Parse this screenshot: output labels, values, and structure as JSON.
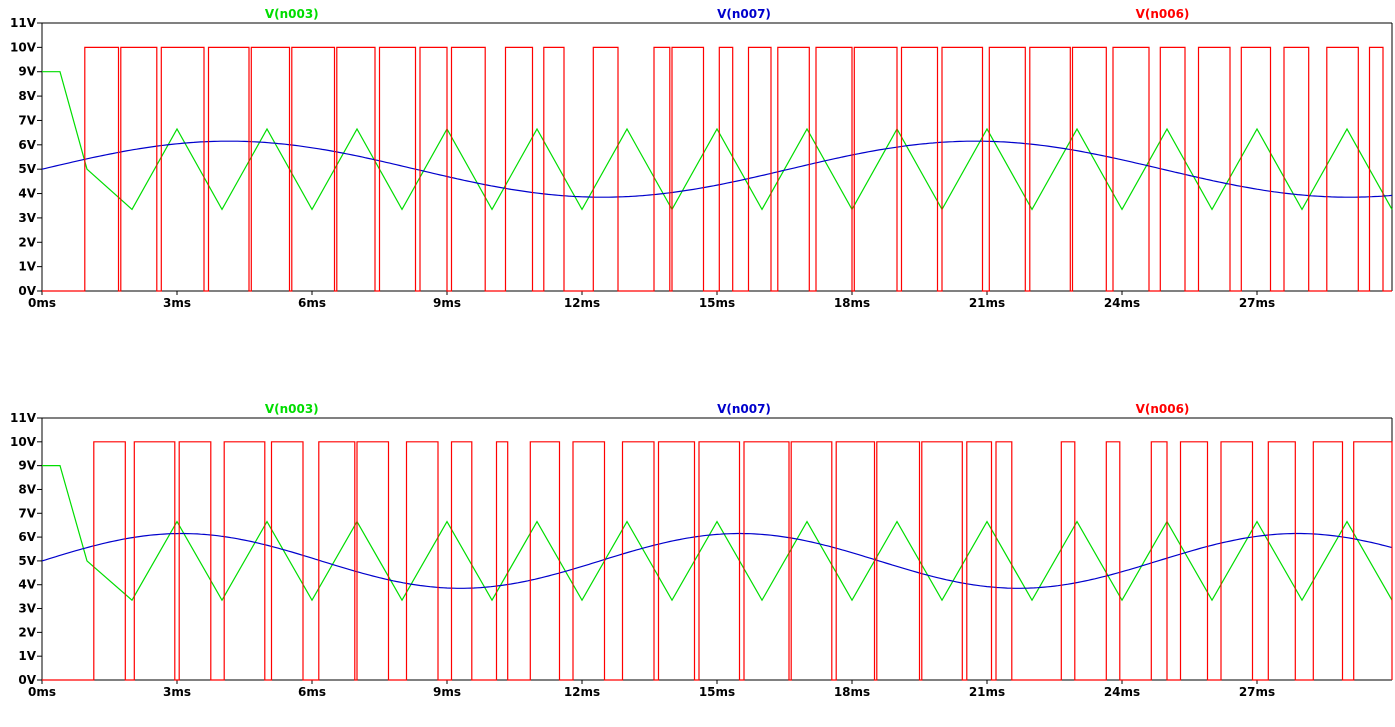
{
  "chart_data": [
    {
      "type": "line",
      "title": "",
      "xlabel": "",
      "ylabel": "",
      "xlim": [
        0,
        30
      ],
      "ylim": [
        0,
        11
      ],
      "x_unit": "ms",
      "y_unit": "V",
      "x_ticks": [
        0,
        3,
        6,
        9,
        12,
        15,
        18,
        21,
        24,
        27
      ],
      "x_tick_labels": [
        "0ms",
        "3ms",
        "6ms",
        "9ms",
        "12ms",
        "15ms",
        "18ms",
        "21ms",
        "24ms",
        "27ms"
      ],
      "y_ticks": [
        0,
        1,
        2,
        3,
        4,
        5,
        6,
        7,
        8,
        9,
        10,
        11
      ],
      "y_tick_labels": [
        "0V",
        "1V",
        "2V",
        "3V",
        "4V",
        "5V",
        "6V",
        "7V",
        "8V",
        "9V",
        "10V",
        "11V"
      ],
      "legend_position": "top",
      "series": [
        {
          "name": "V(n003)",
          "color": "#00dd00",
          "kind": "triangle",
          "initial_level": 9.0,
          "initial_hold_ms": 0.4,
          "first_min_ms": 2.0,
          "period_ms": 2.0,
          "min": 3.35,
          "max": 6.65
        },
        {
          "name": "V(n007)",
          "color": "#0000cc",
          "kind": "sine",
          "offset": 5.0,
          "amplitude": 1.15,
          "period_ms": 16.6,
          "phase_zero_ms": 0.0
        },
        {
          "name": "V(n006)",
          "color": "#ff0000",
          "kind": "pwm",
          "low": 0,
          "high": 10,
          "high_intervals_ms": [
            [
              0.95,
              1.7
            ],
            [
              1.75,
              2.55
            ],
            [
              2.65,
              3.6
            ],
            [
              3.7,
              4.6
            ],
            [
              4.65,
              5.5
            ],
            [
              5.55,
              6.5
            ],
            [
              6.55,
              7.4
            ],
            [
              7.5,
              8.3
            ],
            [
              8.4,
              9.0
            ],
            [
              9.1,
              9.85
            ],
            [
              10.3,
              10.9
            ],
            [
              11.15,
              11.6
            ],
            [
              12.25,
              12.8
            ],
            [
              13.6,
              13.95
            ],
            [
              14.0,
              14.7
            ],
            [
              15.05,
              15.35
            ],
            [
              15.7,
              16.2
            ],
            [
              16.35,
              17.05
            ],
            [
              17.2,
              18.0
            ],
            [
              18.05,
              19.0
            ],
            [
              19.1,
              19.9
            ],
            [
              20.0,
              20.9
            ],
            [
              21.05,
              21.85
            ],
            [
              21.95,
              22.85
            ],
            [
              22.9,
              23.65
            ],
            [
              23.8,
              24.6
            ],
            [
              24.85,
              25.4
            ],
            [
              25.7,
              26.4
            ],
            [
              26.65,
              27.3
            ],
            [
              27.6,
              28.15
            ],
            [
              28.55,
              29.25
            ],
            [
              29.5,
              29.8
            ]
          ]
        }
      ]
    },
    {
      "type": "line",
      "title": "",
      "xlabel": "",
      "ylabel": "",
      "xlim": [
        0,
        30
      ],
      "ylim": [
        0,
        11
      ],
      "x_unit": "ms",
      "y_unit": "V",
      "x_ticks": [
        0,
        3,
        6,
        9,
        12,
        15,
        18,
        21,
        24,
        27
      ],
      "x_tick_labels": [
        "0ms",
        "3ms",
        "6ms",
        "9ms",
        "12ms",
        "15ms",
        "18ms",
        "21ms",
        "24ms",
        "27ms"
      ],
      "y_ticks": [
        0,
        1,
        2,
        3,
        4,
        5,
        6,
        7,
        8,
        9,
        10,
        11
      ],
      "y_tick_labels": [
        "0V",
        "1V",
        "2V",
        "3V",
        "4V",
        "5V",
        "6V",
        "7V",
        "8V",
        "9V",
        "10V",
        "11V"
      ],
      "legend_position": "top",
      "series": [
        {
          "name": "V(n003)",
          "color": "#00dd00",
          "kind": "triangle",
          "initial_level": 9.0,
          "initial_hold_ms": 0.4,
          "first_min_ms": 2.0,
          "period_ms": 2.0,
          "min": 3.35,
          "max": 6.65
        },
        {
          "name": "V(n007)",
          "color": "#0000cc",
          "kind": "sine",
          "offset": 5.0,
          "amplitude": 1.15,
          "period_ms": 12.4,
          "phase_zero_ms": 0.0
        },
        {
          "name": "V(n006)",
          "color": "#ff0000",
          "kind": "pwm",
          "low": 0,
          "high": 10,
          "high_intervals_ms": [
            [
              1.15,
              1.85
            ],
            [
              2.05,
              2.95
            ],
            [
              3.05,
              3.75
            ],
            [
              4.05,
              4.95
            ],
            [
              5.1,
              5.8
            ],
            [
              6.15,
              6.95
            ],
            [
              7.0,
              7.7
            ],
            [
              8.1,
              8.8
            ],
            [
              9.1,
              9.55
            ],
            [
              10.1,
              10.35
            ],
            [
              10.85,
              11.5
            ],
            [
              11.8,
              12.5
            ],
            [
              12.9,
              13.6
            ],
            [
              13.7,
              14.5
            ],
            [
              14.6,
              15.5
            ],
            [
              15.6,
              16.6
            ],
            [
              16.65,
              17.55
            ],
            [
              17.65,
              18.5
            ],
            [
              18.55,
              19.5
            ],
            [
              19.55,
              20.45
            ],
            [
              20.55,
              21.1
            ],
            [
              21.2,
              21.55
            ],
            [
              22.65,
              22.95
            ],
            [
              23.65,
              23.95
            ],
            [
              24.65,
              25.0
            ],
            [
              25.3,
              25.9
            ],
            [
              26.2,
              26.9
            ],
            [
              27.25,
              27.85
            ],
            [
              28.25,
              28.9
            ],
            [
              29.15,
              30.0
            ]
          ]
        }
      ]
    }
  ]
}
